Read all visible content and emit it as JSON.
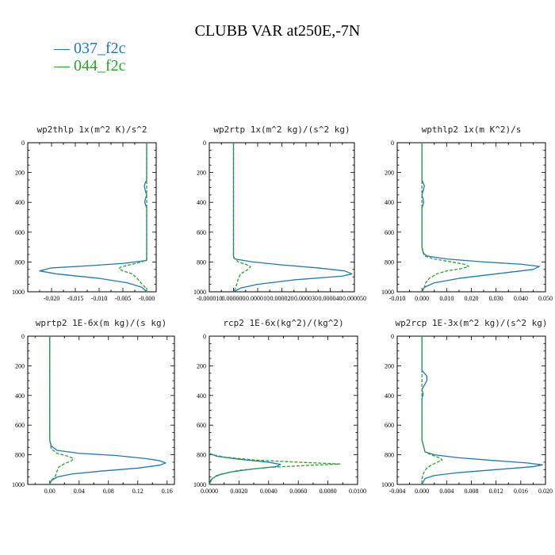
{
  "title": "CLUBB VAR at250E,-7N",
  "legend": [
    {
      "label": "037_f2c",
      "color": "#1f77b4",
      "style": "solid"
    },
    {
      "label": "044_f2c",
      "color": "#2ca02c",
      "style": "dashed"
    }
  ],
  "chart_data": [
    {
      "type": "line",
      "title": "wp2thlp  1x(m^2 K)/s^2",
      "xlim": [
        -0.025,
        0.002
      ],
      "ylim": [
        1000,
        0
      ],
      "x_ticks": [
        -0.02,
        -0.015,
        -0.01,
        -0.005,
        0
      ],
      "x_tick_labels": [
        "-0.020",
        "-0.015",
        "-0.010",
        "-0.005",
        "-0.000"
      ],
      "y_ticks": [
        0,
        200,
        400,
        600,
        800,
        1000
      ],
      "y_tick_labels": [
        "0",
        "200",
        "400",
        "600",
        "800",
        "1000"
      ],
      "series": [
        {
          "name": "037_f2c",
          "points": [
            [
              0,
              0
            ],
            [
              0,
              200
            ],
            [
              0,
              250
            ],
            [
              -0.0003,
              270
            ],
            [
              -0.0005,
              290
            ],
            [
              -0.0003,
              320
            ],
            [
              0,
              350
            ],
            [
              -0.0003,
              380
            ],
            [
              -0.0004,
              400
            ],
            [
              0,
              440
            ],
            [
              0,
              600
            ],
            [
              0,
              750
            ],
            [
              0,
              790
            ],
            [
              -0.005,
              810
            ],
            [
              -0.012,
              825
            ],
            [
              -0.02,
              840
            ],
            [
              -0.0225,
              860
            ],
            [
              -0.019,
              880
            ],
            [
              -0.01,
              910
            ],
            [
              -0.004,
              940
            ],
            [
              -0.001,
              970
            ],
            [
              0,
              1000
            ]
          ]
        },
        {
          "name": "044_f2c",
          "points": [
            [
              0,
              0
            ],
            [
              0,
              600
            ],
            [
              0,
              750
            ],
            [
              0,
              780
            ],
            [
              -0.001,
              800
            ],
            [
              -0.003,
              815
            ],
            [
              -0.0055,
              835
            ],
            [
              -0.0058,
              845
            ],
            [
              -0.005,
              860
            ],
            [
              -0.003,
              880
            ],
            [
              -0.002,
              910
            ],
            [
              -0.0015,
              930
            ],
            [
              0,
              980
            ],
            [
              0,
              1000
            ]
          ]
        }
      ]
    },
    {
      "type": "line",
      "title": "wp2rtp  1x(m^2 kg)/(s^2 kg)",
      "xlim": [
        -1e-05,
        5e-05
      ],
      "ylim": [
        1000,
        0
      ],
      "x_ticks": [
        -1e-05,
        0,
        1e-05,
        2e-05,
        3e-05,
        4e-05,
        5e-05
      ],
      "x_tick_labels": [
        "-0.000010",
        "0.000000",
        "0.000010",
        "0.000020",
        "0.000030",
        "0.000040",
        "0.000050"
      ],
      "y_ticks": [
        0,
        200,
        400,
        600,
        800,
        1000
      ],
      "y_tick_labels": [
        "0",
        "200",
        "400",
        "600",
        "800",
        "1000"
      ],
      "series": [
        {
          "name": "037_f2c",
          "points": [
            [
              0,
              0
            ],
            [
              0,
              700
            ],
            [
              0,
              760
            ],
            [
              5e-07,
              780
            ],
            [
              8e-06,
              800
            ],
            [
              2e-05,
              820
            ],
            [
              3.5e-05,
              840
            ],
            [
              4.6e-05,
              860
            ],
            [
              4.9e-05,
              880
            ],
            [
              4.5e-05,
              895
            ],
            [
              2.5e-05,
              920
            ],
            [
              1e-05,
              950
            ],
            [
              3e-06,
              975
            ],
            [
              0,
              1000
            ]
          ]
        },
        {
          "name": "044_f2c",
          "points": [
            [
              0,
              0
            ],
            [
              0,
              700
            ],
            [
              0,
              770
            ],
            [
              2e-06,
              800
            ],
            [
              5e-06,
              815
            ],
            [
              7e-06,
              830
            ],
            [
              6.5e-06,
              845
            ],
            [
              5e-06,
              860
            ],
            [
              3e-06,
              880
            ],
            [
              2e-06,
              910
            ],
            [
              1.5e-06,
              940
            ],
            [
              1e-06,
              970
            ],
            [
              0,
              1000
            ]
          ]
        }
      ]
    },
    {
      "type": "line",
      "title": "wpthlp2  1x(m K^2)/s",
      "xlim": [
        -0.01,
        0.05
      ],
      "ylim": [
        1000,
        0
      ],
      "x_ticks": [
        -0.01,
        0,
        0.01,
        0.02,
        0.03,
        0.04,
        0.05
      ],
      "x_tick_labels": [
        "-0.010",
        "0.000",
        "0.010",
        "0.020",
        "0.030",
        "0.040",
        "0.050"
      ],
      "y_ticks": [
        0,
        200,
        400,
        600,
        800,
        1000
      ],
      "y_tick_labels": [
        "0",
        "200",
        "400",
        "600",
        "800",
        "1000"
      ],
      "series": [
        {
          "name": "037_f2c",
          "points": [
            [
              0,
              0
            ],
            [
              0,
              250
            ],
            [
              0.0005,
              270
            ],
            [
              0.001,
              290
            ],
            [
              0.0005,
              320
            ],
            [
              0,
              350
            ],
            [
              0.0005,
              380
            ],
            [
              0.0007,
              400
            ],
            [
              0,
              440
            ],
            [
              0,
              700
            ],
            [
              0.0005,
              740
            ],
            [
              0.002,
              760
            ],
            [
              0.01,
              780
            ],
            [
              0.025,
              800
            ],
            [
              0.04,
              815
            ],
            [
              0.0475,
              830
            ],
            [
              0.045,
              850
            ],
            [
              0.03,
              880
            ],
            [
              0.015,
              910
            ],
            [
              0.005,
              940
            ],
            [
              0.001,
              970
            ],
            [
              0,
              1000
            ]
          ]
        },
        {
          "name": "044_f2c",
          "points": [
            [
              0,
              0
            ],
            [
              0,
              700
            ],
            [
              0.001,
              760
            ],
            [
              0.005,
              780
            ],
            [
              0.012,
              800
            ],
            [
              0.017,
              815
            ],
            [
              0.019,
              830
            ],
            [
              0.016,
              845
            ],
            [
              0.01,
              860
            ],
            [
              0.006,
              880
            ],
            [
              0.003,
              910
            ],
            [
              0.0015,
              940
            ],
            [
              0.001,
              970
            ],
            [
              0,
              1000
            ]
          ]
        }
      ]
    },
    {
      "type": "line",
      "title": "wprtp2  1E-6x(m kg)/(s kg)",
      "xlim": [
        -0.03,
        0.17
      ],
      "ylim": [
        1000,
        0
      ],
      "x_ticks": [
        0,
        0.04,
        0.08,
        0.12,
        0.16
      ],
      "x_tick_labels": [
        "0.00",
        "0.04",
        "0.08",
        "0.12",
        "0.16"
      ],
      "y_ticks": [
        0,
        200,
        400,
        600,
        800,
        1000
      ],
      "y_tick_labels": [
        "0",
        "200",
        "400",
        "600",
        "800",
        "1000"
      ],
      "series": [
        {
          "name": "037_f2c",
          "points": [
            [
              0,
              0
            ],
            [
              0,
              700
            ],
            [
              0.002,
              740
            ],
            [
              0.01,
              770
            ],
            [
              0.04,
              790
            ],
            [
              0.09,
              805
            ],
            [
              0.13,
              825
            ],
            [
              0.15,
              840
            ],
            [
              0.158,
              855
            ],
            [
              0.15,
              870
            ],
            [
              0.12,
              890
            ],
            [
              0.07,
              910
            ],
            [
              0.03,
              930
            ],
            [
              0.01,
              950
            ],
            [
              0.002,
              975
            ],
            [
              0,
              1000
            ]
          ]
        },
        {
          "name": "044_f2c",
          "points": [
            [
              0,
              0
            ],
            [
              0,
              700
            ],
            [
              0.002,
              760
            ],
            [
              0.01,
              790
            ],
            [
              0.025,
              810
            ],
            [
              0.032,
              825
            ],
            [
              0.03,
              840
            ],
            [
              0.02,
              860
            ],
            [
              0.012,
              885
            ],
            [
              0.01,
              910
            ],
            [
              0.008,
              940
            ],
            [
              0.002,
              975
            ],
            [
              0,
              1000
            ]
          ]
        }
      ]
    },
    {
      "type": "line",
      "title": "rcp2  1E-6x(kg^2)/(kg^2)",
      "xlim": [
        0,
        0.01
      ],
      "ylim": [
        1000,
        0
      ],
      "x_ticks": [
        0,
        0.002,
        0.004,
        0.006,
        0.008,
        0.01
      ],
      "x_tick_labels": [
        "0.0000",
        "0.0020",
        "0.0040",
        "0.0060",
        "0.0080",
        "0.0100"
      ],
      "y_ticks": [
        0,
        200,
        400,
        600,
        800,
        1000
      ],
      "y_tick_labels": [
        "0",
        "200",
        "400",
        "600",
        "800",
        "1000"
      ],
      "series": [
        {
          "name": "037_f2c",
          "points": [
            [
              0,
              790
            ],
            [
              0.0005,
              810
            ],
            [
              0.002,
              830
            ],
            [
              0.004,
              850
            ],
            [
              0.0048,
              865
            ],
            [
              0.0045,
              880
            ],
            [
              0.003,
              895
            ],
            [
              0.0015,
              915
            ],
            [
              0.0005,
              940
            ],
            [
              0.0001,
              970
            ],
            [
              0,
              1000
            ]
          ]
        },
        {
          "name": "044_f2c",
          "points": [
            [
              0,
              795
            ],
            [
              0.001,
              815
            ],
            [
              0.003,
              835
            ],
            [
              0.006,
              850
            ],
            [
              0.0088,
              862
            ],
            [
              0.007,
              870
            ],
            [
              0.004,
              885
            ],
            [
              0.002,
              905
            ],
            [
              0.0008,
              930
            ],
            [
              0.0002,
              960
            ],
            [
              0,
              1000
            ]
          ]
        }
      ]
    },
    {
      "type": "line",
      "title": "wp2rcp  1E-3x(m^2 kg)/(s^2 kg)",
      "xlim": [
        -0.004,
        0.02
      ],
      "ylim": [
        1000,
        0
      ],
      "x_ticks": [
        -0.004,
        0,
        0.004,
        0.008,
        0.012,
        0.016,
        0.02
      ],
      "x_tick_labels": [
        "-0.004",
        "0.000",
        "0.004",
        "0.008",
        "0.012",
        "0.016",
        "0.020"
      ],
      "y_ticks": [
        0,
        200,
        400,
        600,
        800,
        1000
      ],
      "y_tick_labels": [
        "0",
        "200",
        "400",
        "600",
        "800",
        "1000"
      ],
      "series": [
        {
          "name": "037_f2c",
          "points": [
            [
              0,
              0
            ],
            [
              0,
              230
            ],
            [
              0.0004,
              250
            ],
            [
              0.0008,
              270
            ],
            [
              0.0008,
              300
            ],
            [
              0.0004,
              330
            ],
            [
              0,
              360
            ],
            [
              0.0002,
              390
            ],
            [
              0,
              420
            ],
            [
              0,
              700
            ],
            [
              0.0005,
              780
            ],
            [
              0.002,
              800
            ],
            [
              0.006,
              820
            ],
            [
              0.012,
              840
            ],
            [
              0.017,
              855
            ],
            [
              0.0195,
              868
            ],
            [
              0.018,
              880
            ],
            [
              0.012,
              900
            ],
            [
              0.006,
              920
            ],
            [
              0.002,
              940
            ],
            [
              0.0005,
              960
            ],
            [
              0,
              1000
            ]
          ]
        },
        {
          "name": "044_f2c",
          "points": [
            [
              0,
              0
            ],
            [
              0,
              700
            ],
            [
              0.0005,
              780
            ],
            [
              0.0015,
              800
            ],
            [
              0.0028,
              820
            ],
            [
              0.0033,
              835
            ],
            [
              0.0025,
              850
            ],
            [
              0.0015,
              870
            ],
            [
              0.0008,
              890
            ],
            [
              0.0003,
              920
            ],
            [
              0,
              960
            ],
            [
              0,
              1000
            ]
          ]
        }
      ]
    }
  ]
}
